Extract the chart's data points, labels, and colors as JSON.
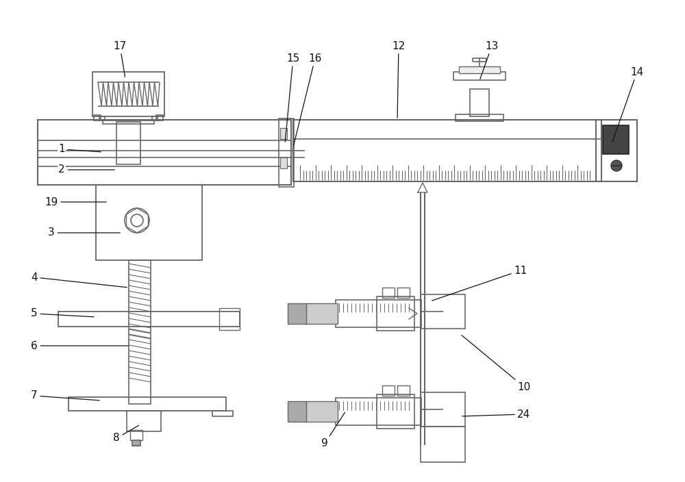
{
  "bg_color": "#ffffff",
  "lc": "#666666",
  "dc": "#333333",
  "label_color": "#111111",
  "figsize": [
    10.0,
    7.04
  ],
  "dpi": 100
}
